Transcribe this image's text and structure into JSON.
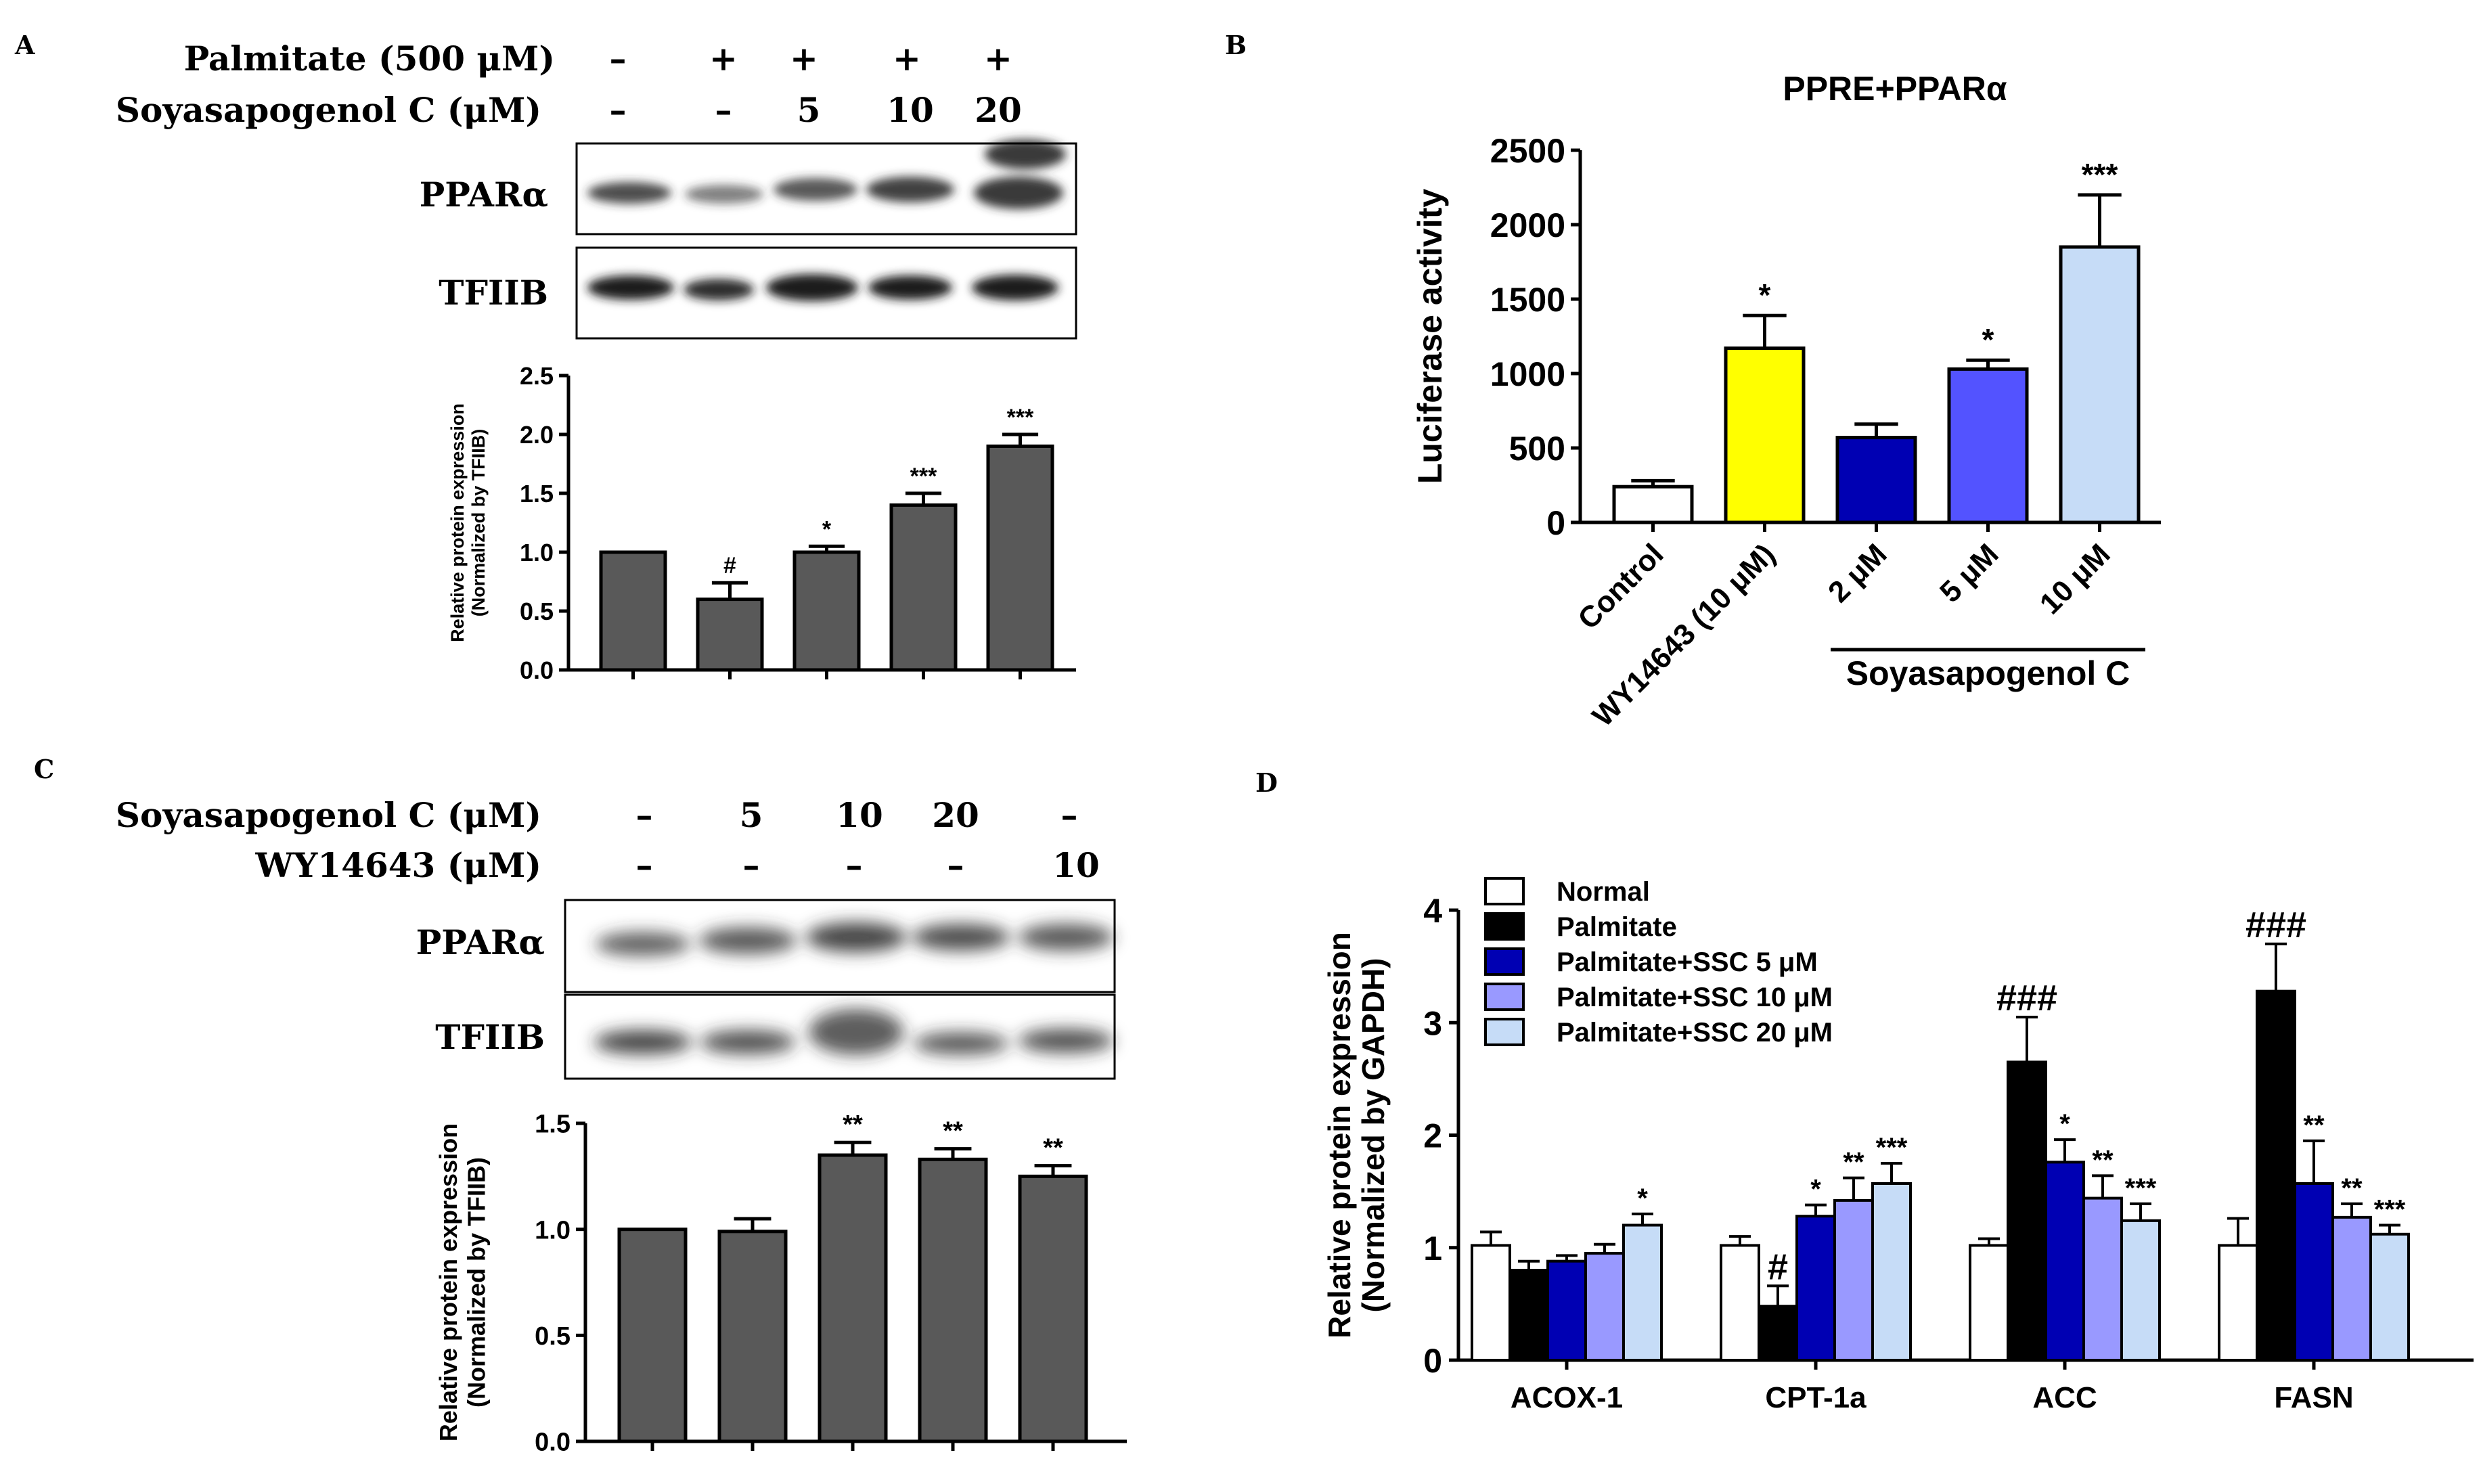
{
  "panels": {
    "A": {
      "letter": "A",
      "treatment_rows": [
        {
          "label": "Palmitate (500 μM)",
          "values": [
            "–",
            "+",
            "+",
            "+",
            "+"
          ]
        },
        {
          "label": "Soyasapogenol C (μM)",
          "values": [
            "–",
            "–",
            "5",
            "10",
            "20"
          ]
        }
      ],
      "blot_labels": [
        "PPARα",
        "TFIIB"
      ]
    },
    "B": {
      "letter": "B",
      "group_label": "Soyasapogenol C"
    },
    "C": {
      "letter": "C",
      "treatment_rows": [
        {
          "label": "Soyasapogenol C (μM)",
          "values": [
            "–",
            "5",
            "10",
            "20",
            "–"
          ]
        },
        {
          "label": "WY14643 (μM)",
          "values": [
            "–",
            "–",
            "–",
            "–",
            "10"
          ]
        }
      ],
      "blot_labels": [
        "PPARα",
        "TFIIB"
      ]
    },
    "D": {
      "letter": "D"
    }
  },
  "colors": {
    "gray_bar": "#595959",
    "yellow": "#ffff00",
    "dark_blue": "#0000b3",
    "mid_blue": "#5353ff",
    "light_blue": "#c6dcf7",
    "lavender": "#9999ff",
    "black": "#000000",
    "white": "#ffffff"
  },
  "chart_data": [
    {
      "id": "A",
      "type": "bar",
      "ylabel": "Relative protein expression",
      "ylabel2": "(Normalized by TFIIB)",
      "ylim": [
        0,
        2.5
      ],
      "yticks": [
        "0.0",
        "0.5",
        "1.0",
        "1.5",
        "2.0",
        "2.5"
      ],
      "values": [
        1.0,
        0.6,
        1.0,
        1.4,
        1.9
      ],
      "errors": [
        0,
        0.14,
        0.05,
        0.1,
        0.1
      ],
      "annotations": [
        "",
        "#",
        "*",
        "***",
        "***"
      ]
    },
    {
      "id": "B",
      "type": "bar",
      "title": "PPRE+PPARα",
      "ylabel": "Luciferase activity",
      "ylim": [
        0,
        2500
      ],
      "yticks": [
        "0",
        "500",
        "1000",
        "1500",
        "2000",
        "2500"
      ],
      "categories": [
        "Control",
        "WY14643 (10 μM)",
        "2 μM",
        "5 μM",
        "10 μM"
      ],
      "values": [
        240,
        1170,
        570,
        1030,
        1850
      ],
      "errors": [
        40,
        220,
        90,
        60,
        350
      ],
      "annotations": [
        "",
        "*",
        "",
        "*",
        "***"
      ]
    },
    {
      "id": "C",
      "type": "bar",
      "ylabel": "Relative protein expression",
      "ylabel2": "(Normalized by TFIIB)",
      "ylim": [
        0,
        1.5
      ],
      "yticks": [
        "0.0",
        "0.5",
        "1.0",
        "1.5"
      ],
      "values": [
        1.0,
        0.99,
        1.35,
        1.33,
        1.25
      ],
      "errors": [
        0,
        0.06,
        0.06,
        0.05,
        0.05
      ],
      "annotations": [
        "",
        "",
        "**",
        "**",
        "**"
      ]
    },
    {
      "id": "D",
      "type": "bar",
      "ylabel": "Relative protein expression",
      "ylabel2": "(Normalized by GAPDH)",
      "ylim": [
        0,
        4
      ],
      "yticks": [
        "0",
        "1",
        "2",
        "3",
        "4"
      ],
      "categories": [
        "ACOX-1",
        "CPT-1a",
        "ACC",
        "FASN"
      ],
      "series": [
        {
          "name": "Normal",
          "values": [
            1.02,
            1.02,
            1.02,
            1.02
          ],
          "errors": [
            0.12,
            0.08,
            0.06,
            0.24
          ],
          "annotations": [
            "",
            "",
            "",
            ""
          ]
        },
        {
          "name": "Palmitate",
          "values": [
            0.8,
            0.48,
            2.65,
            3.28
          ],
          "errors": [
            0.08,
            0.18,
            0.4,
            0.42
          ],
          "annotations": [
            "",
            "#",
            "###",
            "###"
          ]
        },
        {
          "name": "Palmitate+SSC 5 μM",
          "values": [
            0.88,
            1.28,
            1.76,
            1.57
          ],
          "errors": [
            0.05,
            0.1,
            0.2,
            0.38
          ],
          "annotations": [
            "",
            "*",
            "*",
            "**"
          ]
        },
        {
          "name": "Palmitate+SSC 10 μM",
          "values": [
            0.95,
            1.42,
            1.44,
            1.27
          ],
          "errors": [
            0.08,
            0.2,
            0.2,
            0.12
          ],
          "annotations": [
            "",
            "**",
            "**",
            "**"
          ]
        },
        {
          "name": "Palmitate+SSC 20 μM",
          "values": [
            1.2,
            1.57,
            1.24,
            1.12
          ],
          "errors": [
            0.1,
            0.18,
            0.15,
            0.08
          ],
          "annotations": [
            "*",
            "***",
            "***",
            "***"
          ]
        }
      ]
    }
  ]
}
